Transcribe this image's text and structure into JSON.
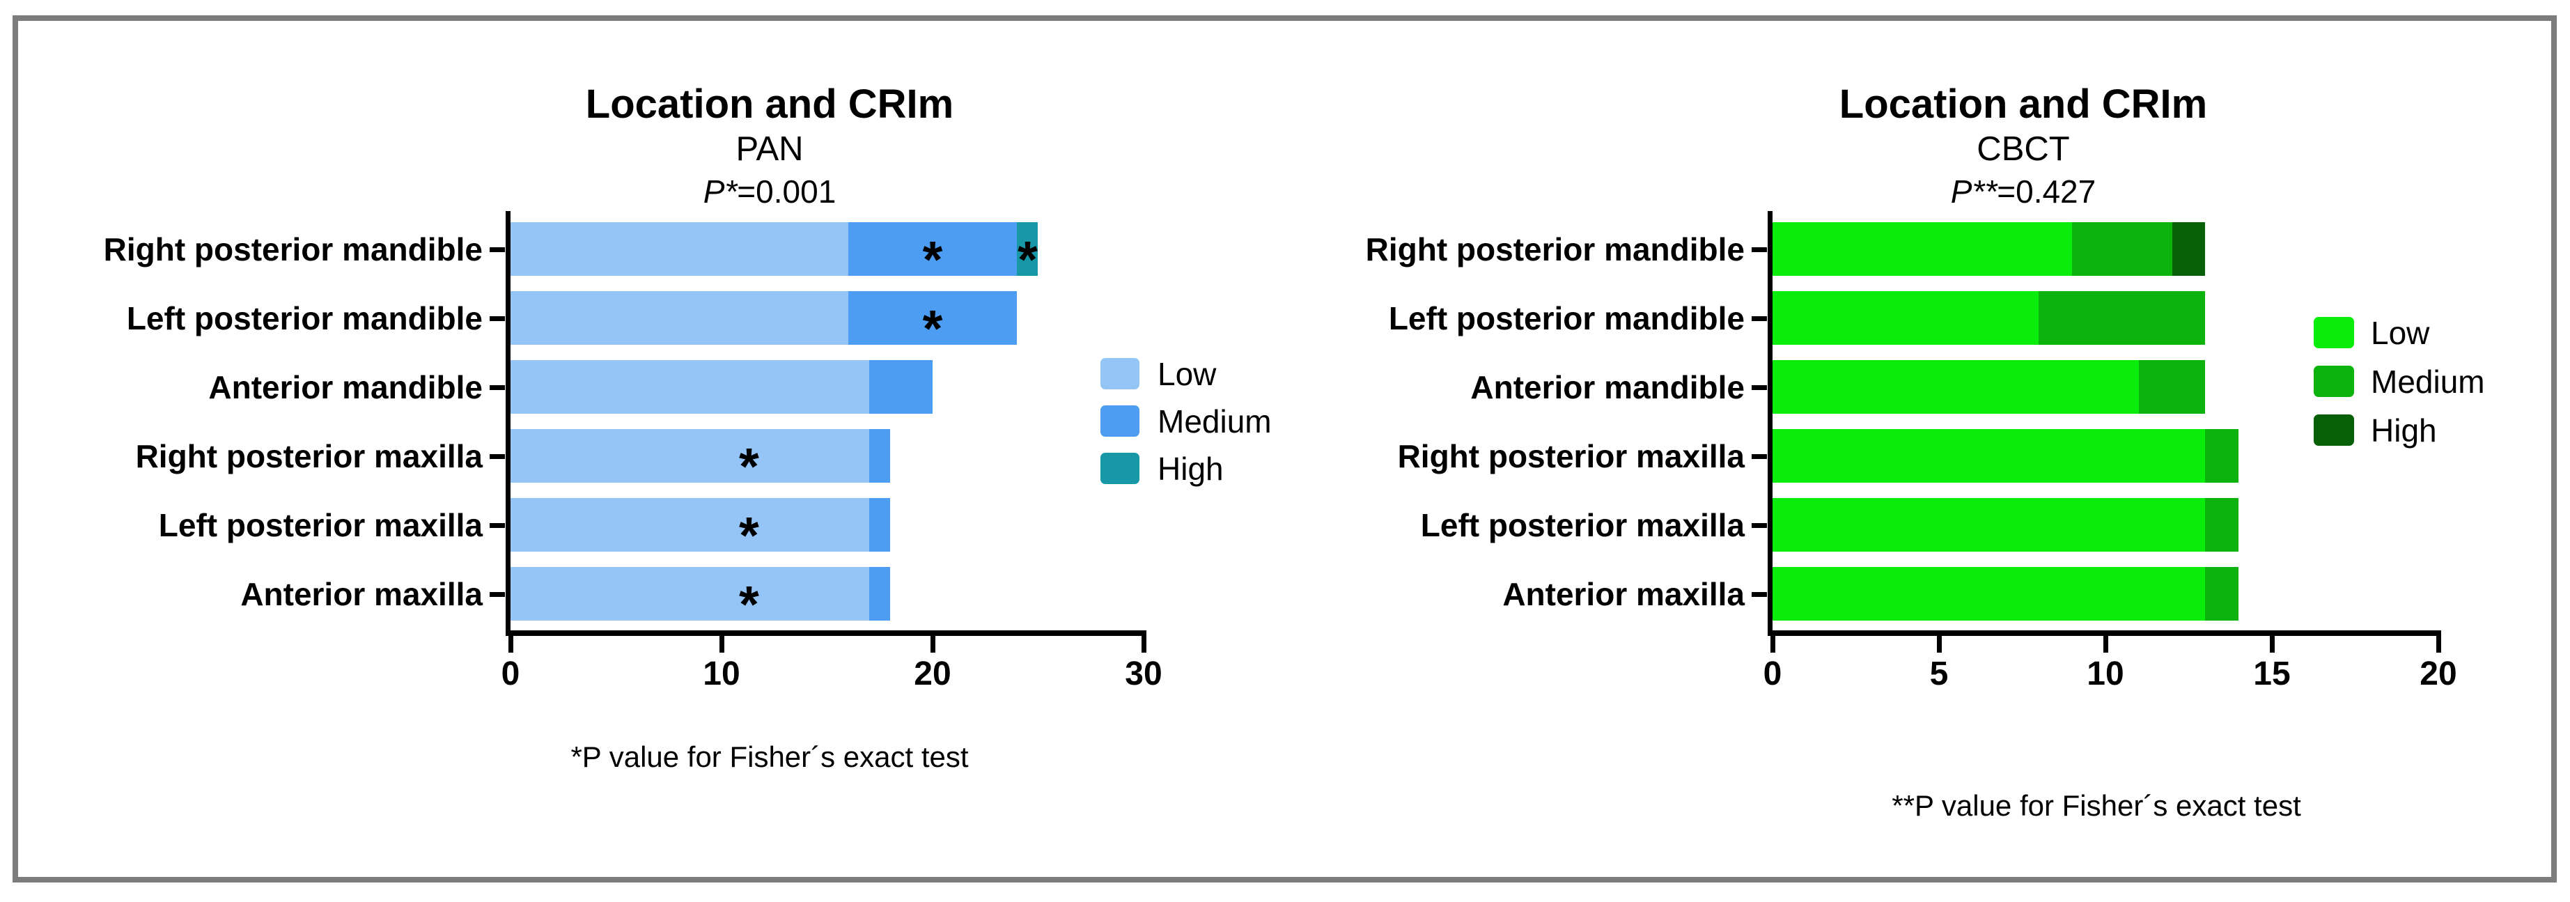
{
  "figure": {
    "background": "#FFFFFF",
    "frame_color": "#7C7C7C"
  },
  "chart_data": [
    {
      "id": "pan",
      "type": "bar",
      "orientation": "horizontal",
      "stacked": true,
      "title": "Location and CRIm",
      "subtitle": "PAN",
      "p_value": {
        "italic": "P*",
        "rest": "=0.001"
      },
      "footnote": "*P value for Fisher´s exact test",
      "categories": [
        "Right posterior mandible",
        "Left posterior mandible",
        "Anterior mandible",
        "Right posterior maxilla",
        "Left posterior maxilla",
        "Anterior maxilla"
      ],
      "series": [
        {
          "name": "Low",
          "color": "#95C4F6",
          "values": [
            16,
            16,
            17,
            17,
            17,
            17
          ]
        },
        {
          "name": "Medium",
          "color": "#4D9EF3",
          "values": [
            8,
            8,
            3,
            1,
            1,
            1
          ]
        },
        {
          "name": "High",
          "color": "#1898A6",
          "values": [
            1,
            0,
            0,
            0,
            0,
            0
          ]
        }
      ],
      "xlim": [
        0,
        30
      ],
      "xticks": [
        0,
        10,
        20,
        30
      ],
      "grid": false,
      "legend_position": "right",
      "legend_labels": [
        "Low",
        "Medium",
        "High"
      ],
      "significance_marks": [
        {
          "category_index": 0,
          "x": 20.0,
          "symbol": "*"
        },
        {
          "category_index": 0,
          "x": 24.5,
          "symbol": "*"
        },
        {
          "category_index": 1,
          "x": 20.0,
          "symbol": "*"
        },
        {
          "category_index": 3,
          "x": 11.3,
          "symbol": "*"
        },
        {
          "category_index": 4,
          "x": 11.3,
          "symbol": "*"
        },
        {
          "category_index": 5,
          "x": 11.3,
          "symbol": "*"
        }
      ]
    },
    {
      "id": "cbct",
      "type": "bar",
      "orientation": "horizontal",
      "stacked": true,
      "title": "Location and CRIm",
      "subtitle": "CBCT",
      "p_value": {
        "italic": "P**",
        "rest": "=0.427"
      },
      "footnote": "**P value for Fisher´s exact test",
      "categories": [
        "Right posterior mandible",
        "Left posterior mandible",
        "Anterior mandible",
        "Right posterior maxilla",
        "Left posterior maxilla",
        "Anterior maxilla"
      ],
      "series": [
        {
          "name": "Low",
          "color": "#0AEC0A",
          "values": [
            9,
            8,
            11,
            13,
            13,
            13
          ]
        },
        {
          "name": "Medium",
          "color": "#0DB30D",
          "values": [
            3,
            5,
            2,
            1,
            1,
            1
          ]
        },
        {
          "name": "High",
          "color": "#075F07",
          "values": [
            1,
            0,
            0,
            0,
            0,
            0
          ]
        }
      ],
      "xlim": [
        0,
        20
      ],
      "xticks": [
        0,
        5,
        10,
        15,
        20
      ],
      "grid": false,
      "legend_position": "right",
      "legend_labels": [
        "Low",
        "Medium",
        "High"
      ],
      "significance_marks": []
    }
  ]
}
